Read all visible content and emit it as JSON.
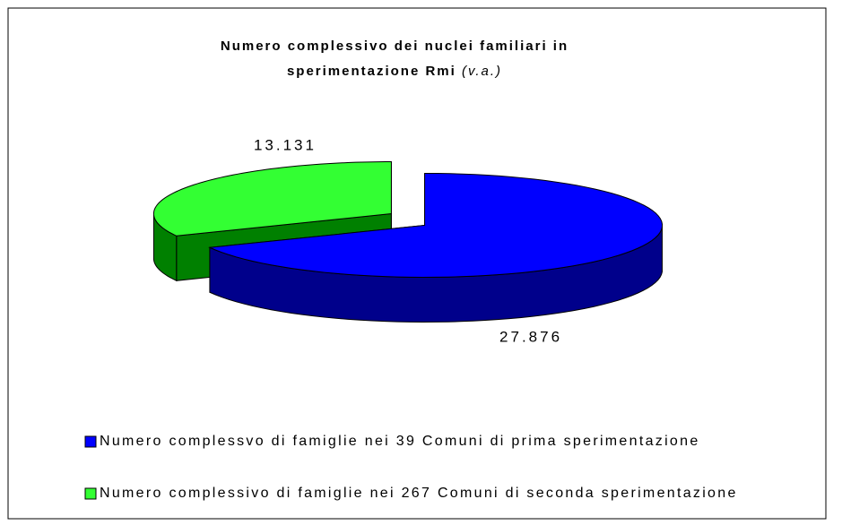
{
  "chart_data": {
    "type": "pie",
    "three_d": true,
    "title": "Numero complessivo dei nuclei familiari in",
    "subtitle": "sperimentazione Rmi",
    "subtitle_note": "(v.a.)",
    "categories": [
      "Numero complessvo di famiglie nei 39 Comuni di prima sperimentazione",
      "Numero complessivo di famiglie nei 267 Comuni di seconda sperimentazione"
    ],
    "values": [
      27876,
      13131
    ],
    "value_labels": [
      "27.876",
      "13.131"
    ],
    "colors": [
      "#0000ff",
      "#33ff33"
    ],
    "side_colors": [
      "#00008b",
      "#008000"
    ],
    "legend": "bottom"
  }
}
